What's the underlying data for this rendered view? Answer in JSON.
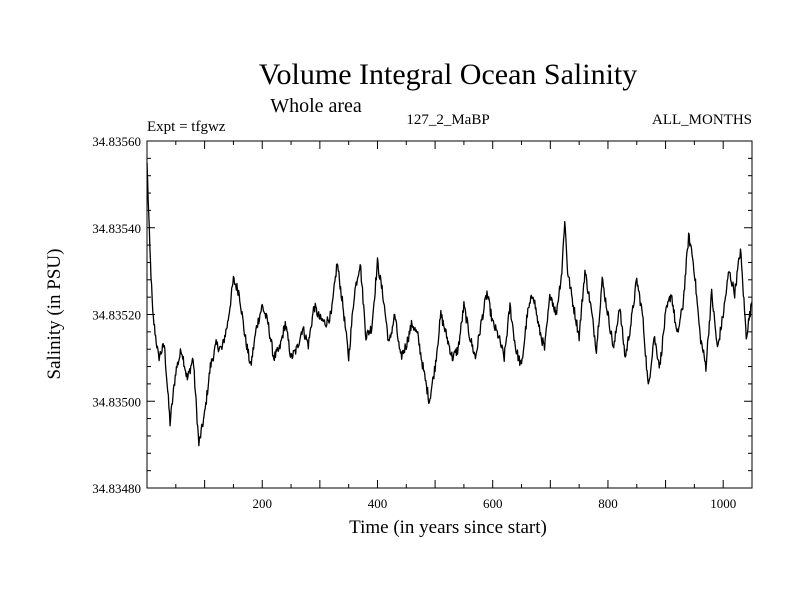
{
  "chart_data": {
    "type": "line",
    "title": "Volume Integral Ocean Salinity",
    "subtitle": "Whole area",
    "annotations": {
      "left": "Expt = tfgwz",
      "center": "127_2_MaBP",
      "right": "ALL_MONTHS"
    },
    "xlabel": "Time (in years since start)",
    "ylabel": "Salinity (in PSU)",
    "xlim": [
      0,
      1050
    ],
    "ylim": [
      34.8348,
      34.8356
    ],
    "x_ticks": [
      200,
      400,
      600,
      800,
      1000
    ],
    "x_tick_labels": [
      "200",
      "400",
      "600",
      "800",
      "1000"
    ],
    "y_ticks": [
      34.8348,
      34.835,
      34.8352,
      34.8354,
      34.8356
    ],
    "y_tick_labels": [
      "34.83480",
      "34.83500",
      "34.83520",
      "34.83540",
      "34.83560"
    ],
    "grid": false,
    "series": [
      {
        "name": "Salinity",
        "color": "#000000",
        "x": [
          0,
          5,
          10,
          20,
          30,
          40,
          50,
          60,
          70,
          80,
          90,
          100,
          110,
          120,
          130,
          140,
          150,
          160,
          170,
          180,
          190,
          200,
          210,
          220,
          230,
          240,
          250,
          260,
          270,
          280,
          290,
          300,
          310,
          320,
          330,
          340,
          350,
          360,
          370,
          380,
          390,
          400,
          410,
          420,
          430,
          440,
          450,
          460,
          470,
          480,
          490,
          500,
          510,
          520,
          530,
          540,
          550,
          560,
          570,
          580,
          590,
          600,
          610,
          620,
          630,
          640,
          650,
          660,
          670,
          680,
          690,
          700,
          710,
          720,
          725,
          730,
          740,
          750,
          760,
          770,
          780,
          790,
          800,
          810,
          820,
          830,
          840,
          850,
          860,
          870,
          880,
          890,
          900,
          910,
          920,
          930,
          940,
          945,
          950,
          960,
          970,
          980,
          990,
          1000,
          1010,
          1020,
          1030,
          1040,
          1050
        ],
        "values": [
          34.83555,
          34.83535,
          34.8352,
          34.8351,
          34.83513,
          34.83495,
          34.83507,
          34.83512,
          34.83505,
          34.8351,
          34.8349,
          34.83497,
          34.83508,
          34.83513,
          34.83512,
          34.83518,
          34.83528,
          34.83525,
          34.83515,
          34.83508,
          34.83517,
          34.83522,
          34.83518,
          34.8351,
          34.83512,
          34.83518,
          34.8351,
          34.83512,
          34.83517,
          34.83513,
          34.83522,
          34.83519,
          34.83518,
          34.8352,
          34.83532,
          34.83522,
          34.8351,
          34.83525,
          34.83532,
          34.83515,
          34.83517,
          34.83532,
          34.83524,
          34.83513,
          34.8352,
          34.8351,
          34.83513,
          34.83518,
          34.83515,
          34.83507,
          34.835,
          34.83508,
          34.8352,
          34.83515,
          34.8351,
          34.83512,
          34.83522,
          34.83515,
          34.8351,
          34.83518,
          34.83525,
          34.83518,
          34.83515,
          34.8351,
          34.83522,
          34.83512,
          34.83508,
          34.8352,
          34.83525,
          34.83517,
          34.83512,
          34.83525,
          34.8352,
          34.8353,
          34.83542,
          34.8353,
          34.83522,
          34.83515,
          34.8353,
          34.83522,
          34.83512,
          34.83528,
          34.8352,
          34.83512,
          34.83522,
          34.8351,
          34.83518,
          34.83528,
          34.8352,
          34.83503,
          34.83515,
          34.83508,
          34.8352,
          34.83525,
          34.83515,
          34.83522,
          34.83538,
          34.83535,
          34.8353,
          34.83515,
          34.83508,
          34.83525,
          34.83512,
          34.8352,
          34.8353,
          34.83525,
          34.83535,
          34.83515,
          34.83523
        ]
      }
    ]
  }
}
